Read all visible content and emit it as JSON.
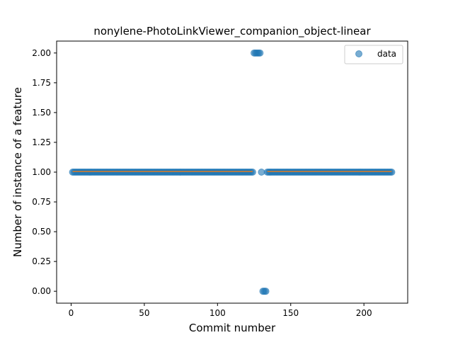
{
  "chart_data": {
    "type": "scatter",
    "title": "nonylene-PhotoLinkViewer_companion_object-linear",
    "xlabel": "Commit number",
    "ylabel": "Number of instance of a feature",
    "xlim": [
      -9.9,
      229.9
    ],
    "ylim": [
      -0.1,
      2.1
    ],
    "xticks": [
      0,
      50,
      100,
      150,
      200
    ],
    "xtick_labels": [
      "0",
      "50",
      "100",
      "150",
      "200"
    ],
    "yticks": [
      0.0,
      0.25,
      0.5,
      0.75,
      1.0,
      1.25,
      1.5,
      1.75,
      2.0
    ],
    "ytick_labels": [
      "0.00",
      "0.25",
      "0.50",
      "0.75",
      "1.00",
      "1.25",
      "1.50",
      "1.75",
      "2.00"
    ],
    "grid": false,
    "legend": {
      "position": "top-right",
      "entries": [
        "data"
      ]
    },
    "series": [
      {
        "name": "data",
        "color": "#1f77b4",
        "alpha": 0.6,
        "segments": [
          {
            "x_start": 1,
            "x_end": 124,
            "y": 1
          },
          {
            "x_start": 125,
            "x_end": 129,
            "y": 2
          },
          {
            "x_start": 130,
            "x_end": 130,
            "y": 1
          },
          {
            "x_start": 131,
            "x_end": 133,
            "y": 0
          },
          {
            "x_start": 134,
            "x_end": 219,
            "y": 1
          }
        ]
      },
      {
        "color": "#ff7f0e",
        "type": "line",
        "segments": [
          {
            "x_start": 1,
            "x_end": 124,
            "y": 1.005
          },
          {
            "x_start": 134,
            "x_end": 219,
            "y": 1.005
          }
        ]
      }
    ]
  }
}
